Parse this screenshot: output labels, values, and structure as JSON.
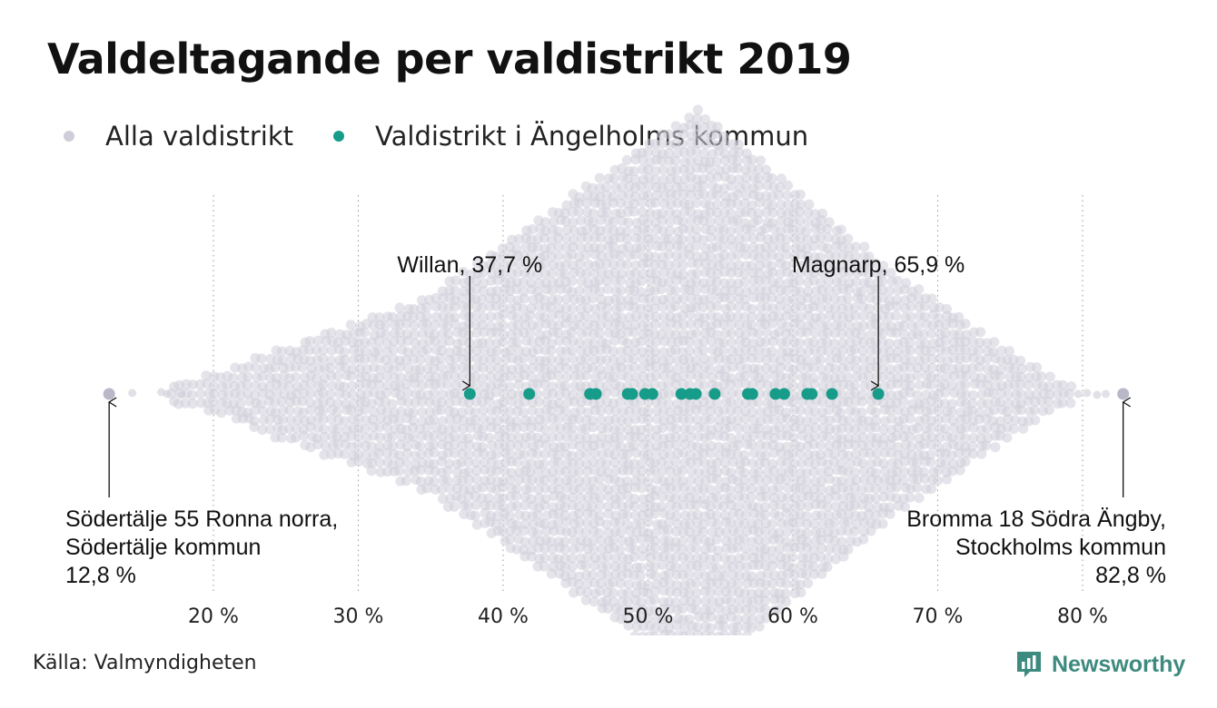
{
  "page": {
    "title": "Valdeltagande per valdistrikt 2019",
    "source": "Källa: Valmyndigheten",
    "brand": "Newsworthy"
  },
  "legend": {
    "all_label": "Alla valdistrikt",
    "local_label": "Valdistrikt i Ängelholms kommun"
  },
  "colors": {
    "all": "#cfcdd9",
    "extreme": "#b9b8c8",
    "local": "#179c8a",
    "brand": "#3d8a7e"
  },
  "chart_data": {
    "type": "scatter",
    "subtype": "beeswarm",
    "xlim": [
      12,
      84
    ],
    "ticks": [
      {
        "value": 20,
        "label": "20 %"
      },
      {
        "value": 30,
        "label": "30 %"
      },
      {
        "value": 40,
        "label": "40 %"
      },
      {
        "value": 50,
        "label": "50 %"
      },
      {
        "value": 60,
        "label": "60 %"
      },
      {
        "value": 70,
        "label": "70 %"
      },
      {
        "value": 80,
        "label": "80 %"
      }
    ],
    "grid": "vertical dotted",
    "series": [
      {
        "name": "Alla valdistrikt",
        "min": 12.8,
        "max": 82.8,
        "peak": 53.5
      },
      {
        "name": "Valdistrikt i Ängelholms kommun",
        "values": [
          37.7,
          41.8,
          46.0,
          46.4,
          48.6,
          48.9,
          49.8,
          50.3,
          52.3,
          52.9,
          53.3,
          54.6,
          56.9,
          57.2,
          58.8,
          59.4,
          61.0,
          61.3,
          62.7,
          65.9
        ]
      }
    ],
    "annotations": [
      {
        "value": 37.7,
        "lines": [
          "Willan, 37,7 %"
        ],
        "position": "above",
        "align": "center"
      },
      {
        "value": 65.9,
        "lines": [
          "Magnarp, 65,9 %"
        ],
        "position": "above",
        "align": "center"
      },
      {
        "value": 12.8,
        "lines": [
          "Södertälje 55 Ronna norra,",
          "Södertälje kommun",
          "12,8 %"
        ],
        "position": "below",
        "align": "left"
      },
      {
        "value": 82.8,
        "lines": [
          "Bromma 18 Södra Ängby,",
          "Stockholms kommun",
          "82,8 %"
        ],
        "position": "below",
        "align": "right"
      }
    ]
  }
}
